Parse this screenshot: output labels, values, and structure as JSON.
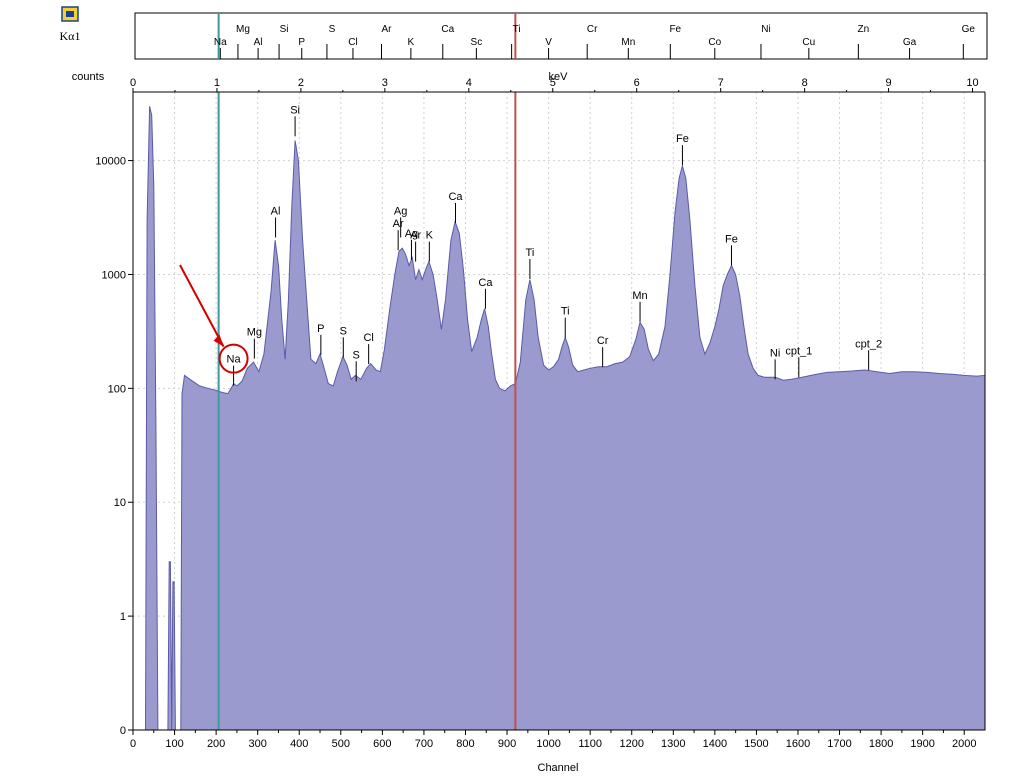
{
  "ruler": {
    "line_name": "Kα1",
    "upper_elements": [
      {
        "symbol": "Mg",
        "kev": 1.25
      },
      {
        "symbol": "Si",
        "kev": 1.74
      },
      {
        "symbol": "S",
        "kev": 2.31
      },
      {
        "symbol": "Ar",
        "kev": 2.96
      },
      {
        "symbol": "Ca",
        "kev": 3.69
      },
      {
        "symbol": "Ti",
        "kev": 4.51
      },
      {
        "symbol": "Cr",
        "kev": 5.41
      },
      {
        "symbol": "Fe",
        "kev": 6.4
      },
      {
        "symbol": "Ni",
        "kev": 7.48
      },
      {
        "symbol": "Zn",
        "kev": 8.64
      },
      {
        "symbol": "Ge",
        "kev": 9.89
      }
    ],
    "lower_elements": [
      {
        "symbol": "Na",
        "kev": 1.04
      },
      {
        "symbol": "Al",
        "kev": 1.49
      },
      {
        "symbol": "P",
        "kev": 2.01
      },
      {
        "symbol": "Cl",
        "kev": 2.62
      },
      {
        "symbol": "K",
        "kev": 3.31
      },
      {
        "symbol": "Sc",
        "kev": 4.09
      },
      {
        "symbol": "V",
        "kev": 4.95
      },
      {
        "symbol": "Mn",
        "kev": 5.9
      },
      {
        "symbol": "Co",
        "kev": 6.93
      },
      {
        "symbol": "Cu",
        "kev": 8.05
      },
      {
        "symbol": "Ga",
        "kev": 9.25
      }
    ]
  },
  "chart_data": {
    "type": "area",
    "xlabel": "Channel",
    "ylabel": "counts",
    "top_axis_label": "keV",
    "y_scale": "log",
    "x_range": [
      0,
      2050
    ],
    "x_ticks": [
      0,
      100,
      200,
      300,
      400,
      500,
      600,
      700,
      800,
      900,
      1000,
      1100,
      1200,
      1300,
      1400,
      1500,
      1600,
      1700,
      1800,
      1900,
      2000
    ],
    "top_range_kev": [
      0,
      10
    ],
    "top_ticks_kev": [
      0,
      1,
      2,
      3,
      4,
      5,
      6,
      7,
      8,
      9,
      10
    ],
    "y_ticks": [
      {
        "value": 0,
        "label": "0"
      },
      {
        "value": 1,
        "label": "1"
      },
      {
        "value": 10,
        "label": "10"
      },
      {
        "value": 100,
        "label": "100"
      },
      {
        "value": 1000,
        "label": "1000"
      },
      {
        "value": 10000,
        "label": "10000"
      }
    ],
    "grid": true,
    "fill_color": "#9a9acf",
    "line_color": "#5a5aa8",
    "cursor_left": {
      "channel": 206,
      "color": "#3b9a9a"
    },
    "cursor_right": {
      "channel": 920,
      "color": "#c0504d"
    },
    "spectrum": [
      [
        30,
        0
      ],
      [
        34,
        3000
      ],
      [
        40,
        30000
      ],
      [
        45,
        25000
      ],
      [
        50,
        6000
      ],
      [
        55,
        50
      ],
      [
        60,
        0
      ],
      [
        84,
        0
      ],
      [
        87,
        3
      ],
      [
        90,
        3
      ],
      [
        93,
        0
      ],
      [
        96,
        2
      ],
      [
        99,
        2
      ],
      [
        102,
        0
      ],
      [
        115,
        0
      ],
      [
        118,
        90
      ],
      [
        124,
        130
      ],
      [
        140,
        118
      ],
      [
        160,
        105
      ],
      [
        180,
        100
      ],
      [
        200,
        96
      ],
      [
        215,
        92
      ],
      [
        228,
        90
      ],
      [
        236,
        100
      ],
      [
        242,
        110
      ],
      [
        250,
        105
      ],
      [
        262,
        115
      ],
      [
        275,
        150
      ],
      [
        290,
        170
      ],
      [
        303,
        140
      ],
      [
        315,
        200
      ],
      [
        332,
        700
      ],
      [
        342,
        2000
      ],
      [
        350,
        1200
      ],
      [
        358,
        400
      ],
      [
        366,
        180
      ],
      [
        374,
        600
      ],
      [
        382,
        4000
      ],
      [
        390,
        15000
      ],
      [
        398,
        10000
      ],
      [
        408,
        2000
      ],
      [
        418,
        600
      ],
      [
        428,
        180
      ],
      [
        440,
        165
      ],
      [
        450,
        200
      ],
      [
        458,
        160
      ],
      [
        470,
        110
      ],
      [
        482,
        105
      ],
      [
        492,
        140
      ],
      [
        505,
        190
      ],
      [
        515,
        160
      ],
      [
        525,
        120
      ],
      [
        535,
        130
      ],
      [
        548,
        120
      ],
      [
        562,
        150
      ],
      [
        572,
        165
      ],
      [
        585,
        145
      ],
      [
        595,
        140
      ],
      [
        605,
        220
      ],
      [
        618,
        500
      ],
      [
        630,
        1000
      ],
      [
        640,
        1600
      ],
      [
        648,
        1700
      ],
      [
        656,
        1500
      ],
      [
        664,
        1200
      ],
      [
        672,
        1400
      ],
      [
        680,
        900
      ],
      [
        688,
        1100
      ],
      [
        696,
        900
      ],
      [
        704,
        1100
      ],
      [
        712,
        1300
      ],
      [
        722,
        1000
      ],
      [
        732,
        600
      ],
      [
        742,
        330
      ],
      [
        752,
        600
      ],
      [
        765,
        2000
      ],
      [
        775,
        2900
      ],
      [
        785,
        2300
      ],
      [
        795,
        1100
      ],
      [
        805,
        400
      ],
      [
        815,
        210
      ],
      [
        828,
        280
      ],
      [
        838,
        400
      ],
      [
        846,
        500
      ],
      [
        855,
        350
      ],
      [
        863,
        200
      ],
      [
        872,
        120
      ],
      [
        882,
        100
      ],
      [
        895,
        95
      ],
      [
        908,
        105
      ],
      [
        920,
        110
      ],
      [
        932,
        170
      ],
      [
        945,
        600
      ],
      [
        955,
        900
      ],
      [
        965,
        600
      ],
      [
        975,
        280
      ],
      [
        988,
        160
      ],
      [
        1000,
        145
      ],
      [
        1012,
        155
      ],
      [
        1024,
        180
      ],
      [
        1032,
        230
      ],
      [
        1040,
        280
      ],
      [
        1048,
        230
      ],
      [
        1058,
        160
      ],
      [
        1070,
        140
      ],
      [
        1085,
        145
      ],
      [
        1100,
        150
      ],
      [
        1120,
        155
      ],
      [
        1140,
        155
      ],
      [
        1160,
        165
      ],
      [
        1178,
        170
      ],
      [
        1195,
        190
      ],
      [
        1210,
        270
      ],
      [
        1220,
        380
      ],
      [
        1230,
        330
      ],
      [
        1240,
        220
      ],
      [
        1252,
        175
      ],
      [
        1265,
        200
      ],
      [
        1280,
        350
      ],
      [
        1292,
        1000
      ],
      [
        1304,
        3500
      ],
      [
        1314,
        7000
      ],
      [
        1322,
        9000
      ],
      [
        1330,
        7000
      ],
      [
        1340,
        3000
      ],
      [
        1352,
        800
      ],
      [
        1364,
        280
      ],
      [
        1376,
        200
      ],
      [
        1388,
        250
      ],
      [
        1400,
        350
      ],
      [
        1410,
        500
      ],
      [
        1420,
        800
      ],
      [
        1430,
        1000
      ],
      [
        1440,
        1200
      ],
      [
        1450,
        1000
      ],
      [
        1460,
        650
      ],
      [
        1470,
        350
      ],
      [
        1480,
        200
      ],
      [
        1492,
        150
      ],
      [
        1504,
        130
      ],
      [
        1520,
        125
      ],
      [
        1545,
        125
      ],
      [
        1565,
        118
      ],
      [
        1585,
        120
      ],
      [
        1610,
        125
      ],
      [
        1640,
        132
      ],
      [
        1670,
        138
      ],
      [
        1700,
        140
      ],
      [
        1730,
        142
      ],
      [
        1760,
        145
      ],
      [
        1790,
        140
      ],
      [
        1820,
        135
      ],
      [
        1850,
        140
      ],
      [
        1880,
        140
      ],
      [
        1910,
        138
      ],
      [
        1940,
        135
      ],
      [
        1970,
        133
      ],
      [
        2000,
        130
      ],
      [
        2030,
        128
      ],
      [
        2050,
        130
      ]
    ],
    "peak_labels": [
      {
        "text": "Si",
        "channel": 390,
        "counts": 17000
      },
      {
        "text": "Al",
        "channel": 343,
        "counts": 2200
      },
      {
        "text": "Mg",
        "channel": 292,
        "counts": 190
      },
      {
        "text": "Na",
        "channel": 242,
        "counts": 110
      },
      {
        "text": "P",
        "channel": 452,
        "counts": 205
      },
      {
        "text": "S",
        "channel": 506,
        "counts": 195
      },
      {
        "text": "S",
        "channel": 537,
        "counts": 120
      },
      {
        "text": "Cl",
        "channel": 567,
        "counts": 170
      },
      {
        "text": "Ag",
        "channel": 644,
        "counts": 2200
      },
      {
        "text": "Ar",
        "channel": 638,
        "counts": 1700
      },
      {
        "text": "Ag",
        "channel": 670,
        "counts": 1400
      },
      {
        "text": "Ar",
        "channel": 680,
        "counts": 1350
      },
      {
        "text": "K",
        "channel": 713,
        "counts": 1350
      },
      {
        "text": "Ca",
        "channel": 776,
        "counts": 2950
      },
      {
        "text": "Ca",
        "channel": 848,
        "counts": 520
      },
      {
        "text": "Ti",
        "channel": 955,
        "counts": 950
      },
      {
        "text": "Ti",
        "channel": 1040,
        "counts": 290
      },
      {
        "text": "Cr",
        "channel": 1130,
        "counts": 160
      },
      {
        "text": "Mn",
        "channel": 1220,
        "counts": 400
      },
      {
        "text": "Fe",
        "channel": 1322,
        "counts": 9500
      },
      {
        "text": "Fe",
        "channel": 1440,
        "counts": 1250
      },
      {
        "text": "Ni",
        "channel": 1545,
        "counts": 125
      },
      {
        "text": "cpt_1",
        "channel": 1602,
        "counts": 130
      },
      {
        "text": "cpt_2",
        "channel": 1770,
        "counts": 150
      }
    ],
    "highlight": {
      "label": "Na",
      "color": "#d40000"
    }
  }
}
